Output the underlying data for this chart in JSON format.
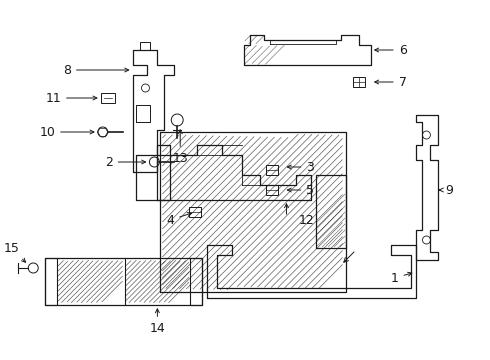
{
  "bg_color": "#ffffff",
  "line_color": "#1a1a1a",
  "fig_w": 4.9,
  "fig_h": 3.6,
  "dpi": 100
}
